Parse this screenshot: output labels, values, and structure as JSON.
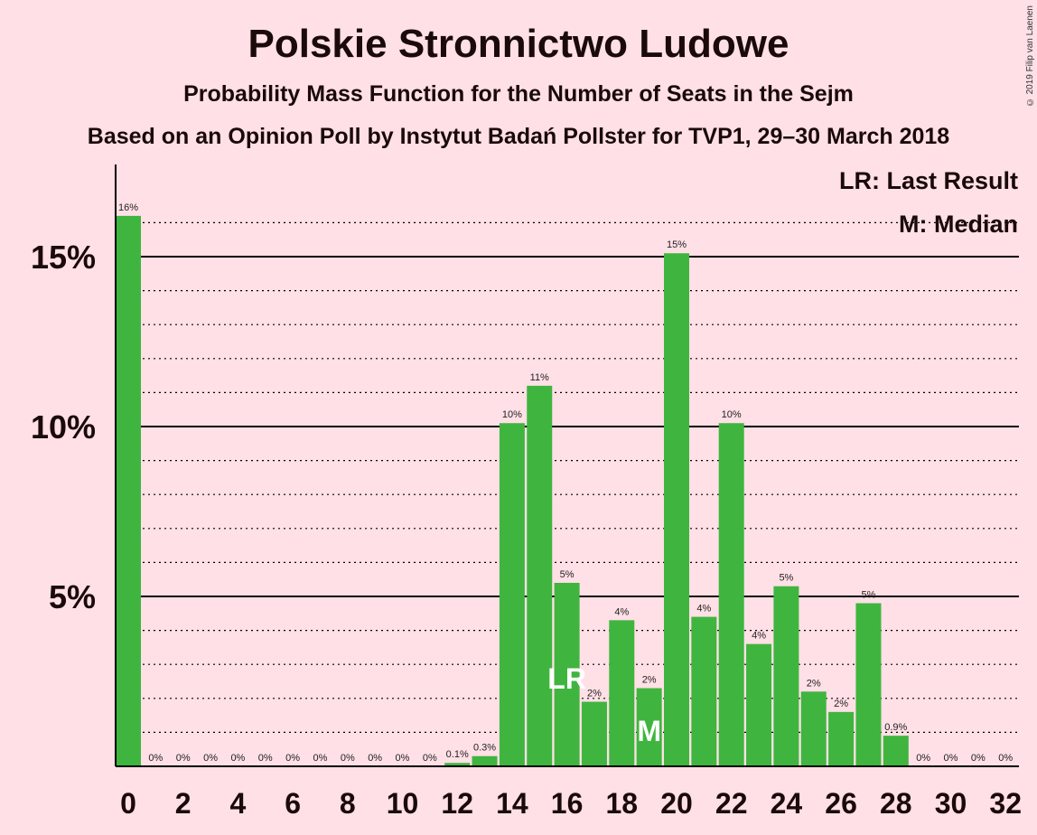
{
  "title": "Polskie Stronnictwo Ludowe",
  "subtitle": "Probability Mass Function for the Number of Seats in the Sejm",
  "source": "Based on an Opinion Poll by Instytut Badań Pollster for TVP1, 29–30 March 2018",
  "copyright": "© 2019 Filip van Laenen",
  "legend": {
    "last_result": "LR: Last Result",
    "median": "M: Median"
  },
  "colors": {
    "bar": "#3FB53F",
    "background": "#FFE0E6",
    "text": "#1a0a0a"
  },
  "chart_data": {
    "type": "bar",
    "x": [
      0,
      1,
      2,
      3,
      4,
      5,
      6,
      7,
      8,
      9,
      10,
      11,
      12,
      13,
      14,
      15,
      16,
      17,
      18,
      19,
      20,
      21,
      22,
      23,
      24,
      25,
      26,
      27,
      28,
      29,
      30,
      31,
      32
    ],
    "values": [
      16.2,
      0,
      0,
      0,
      0,
      0,
      0,
      0,
      0,
      0,
      0,
      0,
      0.1,
      0.3,
      10.1,
      11.2,
      5.4,
      1.9,
      4.3,
      2.3,
      15.1,
      4.4,
      10.1,
      3.6,
      5.3,
      2.2,
      1.6,
      4.8,
      0.9,
      0,
      0,
      0,
      0
    ],
    "labels": [
      "16%",
      "0%",
      "0%",
      "0%",
      "0%",
      "0%",
      "0%",
      "0%",
      "0%",
      "0%",
      "0%",
      "0%",
      "0.1%",
      "0.3%",
      "10%",
      "11%",
      "5%",
      "2%",
      "4%",
      "2%",
      "15%",
      "4%",
      "10%",
      "4%",
      "5%",
      "2%",
      "2%",
      "5%",
      "0.9%",
      "0%",
      "0%",
      "0%",
      "0%"
    ],
    "xticks": [
      "0",
      "2",
      "4",
      "6",
      "8",
      "10",
      "12",
      "14",
      "16",
      "18",
      "20",
      "22",
      "24",
      "26",
      "28",
      "30",
      "32"
    ],
    "yticks": [
      "5%",
      "10%",
      "15%"
    ],
    "ylim": [
      0,
      17.5
    ],
    "last_result_seat": 16,
    "last_result_marker": "LR",
    "median_seat": 19,
    "median_marker": "M",
    "grid": "dotted every 1%, solid every 5%",
    "legend_position": "top-right"
  }
}
